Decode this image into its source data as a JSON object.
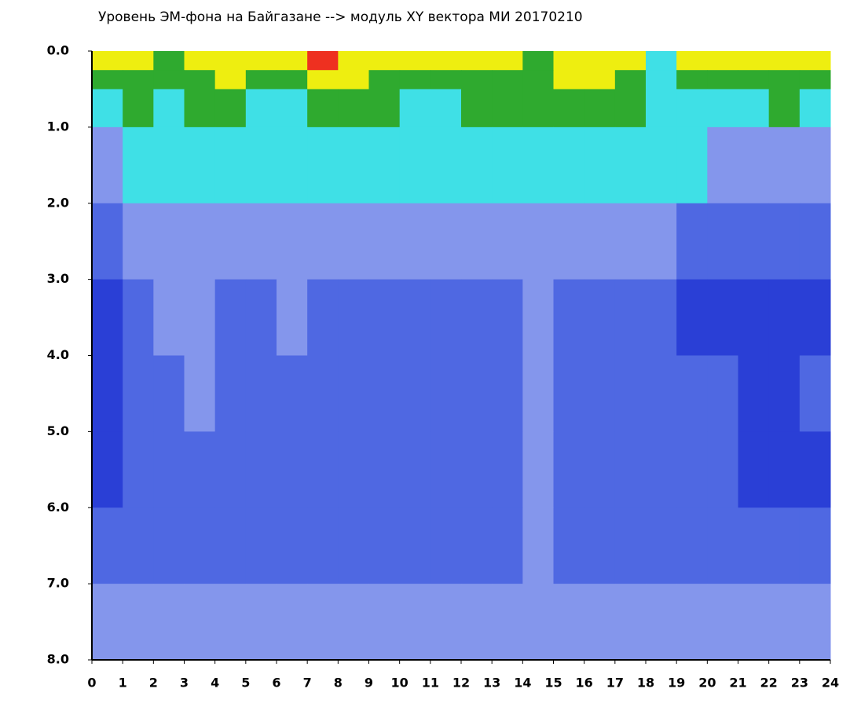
{
  "chart_data": {
    "type": "heatmap",
    "title": "Уровень ЭМ-фона на Байгазане  -->  модуль XY вектора МИ  20170210",
    "xlim": [
      0,
      24
    ],
    "xticks": [
      0,
      1,
      2,
      3,
      4,
      5,
      6,
      7,
      8,
      9,
      10,
      11,
      12,
      13,
      14,
      15,
      16,
      17,
      18,
      19,
      20,
      21,
      22,
      23,
      24
    ],
    "ylim": [
      0,
      8
    ],
    "y_inverted": true,
    "yticks": [
      {
        "value": 0,
        "label": "0.0"
      },
      {
        "value": 1,
        "label": "1.0"
      },
      {
        "value": 2,
        "label": "2.0"
      },
      {
        "value": 3,
        "label": "3.0"
      },
      {
        "value": 4,
        "label": "4.0"
      },
      {
        "value": 5,
        "label": "5.0"
      },
      {
        "value": 6,
        "label": "6.0"
      },
      {
        "value": 7,
        "label": "7.0"
      },
      {
        "value": 8,
        "label": "8.0"
      }
    ],
    "xbins": [
      0,
      1,
      2,
      3,
      4,
      5,
      6,
      7,
      8,
      9,
      10,
      11,
      12,
      13,
      14,
      15,
      16,
      17,
      18,
      19,
      20,
      21,
      22,
      23,
      24
    ],
    "ybins": [
      0,
      0.25,
      0.5,
      1,
      2,
      3,
      4,
      5,
      6,
      7,
      8
    ],
    "colors": [
      "#2a3fd6",
      "#4f68e2",
      "#8496ec",
      "#3fe0e6",
      "#2faa2f",
      "#eeee10",
      "#ee3020"
    ],
    "z": [
      [
        5,
        5,
        4,
        5,
        5,
        5,
        5,
        6,
        5,
        5,
        5,
        5,
        5,
        5,
        4,
        5,
        5,
        5,
        3,
        5,
        5,
        5,
        5,
        5
      ],
      [
        4,
        4,
        4,
        4,
        5,
        4,
        4,
        5,
        5,
        4,
        4,
        4,
        4,
        4,
        4,
        5,
        5,
        4,
        3,
        4,
        4,
        4,
        4,
        4
      ],
      [
        3,
        4,
        3,
        4,
        4,
        3,
        3,
        4,
        4,
        4,
        3,
        3,
        4,
        4,
        4,
        4,
        4,
        4,
        3,
        3,
        3,
        3,
        4,
        3
      ],
      [
        2,
        3,
        3,
        3,
        3,
        3,
        3,
        3,
        3,
        3,
        3,
        3,
        3,
        3,
        3,
        3,
        3,
        3,
        3,
        3,
        2,
        2,
        2,
        2
      ],
      [
        1,
        2,
        2,
        2,
        2,
        2,
        2,
        2,
        2,
        2,
        2,
        2,
        2,
        2,
        2,
        2,
        2,
        2,
        2,
        1,
        1,
        1,
        1,
        1
      ],
      [
        0,
        1,
        2,
        2,
        1,
        1,
        2,
        1,
        1,
        1,
        1,
        1,
        1,
        1,
        2,
        1,
        1,
        1,
        1,
        0,
        0,
        0,
        0,
        0
      ],
      [
        0,
        1,
        1,
        2,
        1,
        1,
        1,
        1,
        1,
        1,
        1,
        1,
        1,
        1,
        2,
        1,
        1,
        1,
        1,
        1,
        1,
        0,
        0,
        1
      ],
      [
        0,
        1,
        1,
        1,
        1,
        1,
        1,
        1,
        1,
        1,
        1,
        1,
        1,
        1,
        2,
        1,
        1,
        1,
        1,
        1,
        1,
        0,
        0,
        0
      ],
      [
        1,
        1,
        1,
        1,
        1,
        1,
        1,
        1,
        1,
        1,
        1,
        1,
        1,
        1,
        2,
        1,
        1,
        1,
        1,
        1,
        1,
        1,
        1,
        1
      ],
      [
        2,
        2,
        2,
        2,
        2,
        2,
        2,
        2,
        2,
        2,
        2,
        2,
        2,
        2,
        2,
        2,
        2,
        2,
        2,
        2,
        2,
        2,
        2,
        2
      ]
    ]
  }
}
